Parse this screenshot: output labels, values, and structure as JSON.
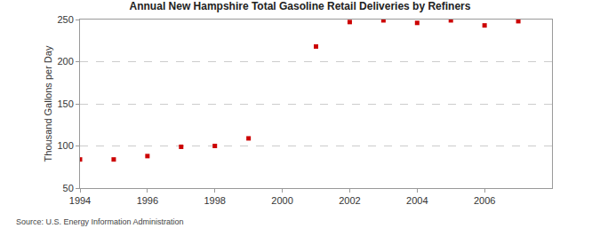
{
  "chart_data": {
    "type": "scatter",
    "title": "Annual New Hampshire Total Gasoline Retail Deliveries by Refiners",
    "y_label": "Thousand Gallons per Day",
    "source": "Source: U.S. Energy Information Administration",
    "x": [
      1994,
      1995,
      1996,
      1997,
      1998,
      1999,
      2001,
      2002,
      2003,
      2004,
      2005,
      2006,
      2007
    ],
    "values": [
      84,
      84,
      88,
      99,
      100,
      109,
      218,
      247,
      249,
      246,
      249,
      243,
      248
    ],
    "color": "#cc0000",
    "marker": "square",
    "xlim": [
      1994,
      2008
    ],
    "xticks": [
      1994,
      1996,
      1998,
      2000,
      2002,
      2004,
      2006
    ],
    "ylim": [
      50,
      250
    ],
    "yticks": [
      50,
      100,
      150,
      200,
      250
    ],
    "grid": true
  }
}
